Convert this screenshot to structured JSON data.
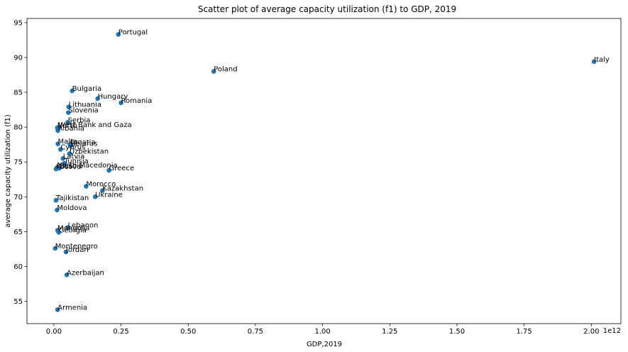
{
  "chart_data": {
    "type": "scatter",
    "title": "Scatter plot of average capacity utilization (f1) to GDP, 2019",
    "xlabel": "GDP,2019",
    "ylabel": "average capacity utilization (f1)",
    "x_offset_text": "1e12",
    "xlim": [
      -0.1,
      2.11
    ],
    "ylim": [
      51.8,
      95.6
    ],
    "xticks": [
      0.0,
      0.25,
      0.5,
      0.75,
      1.0,
      1.25,
      1.5,
      1.75,
      2.0
    ],
    "xtick_labels": [
      "0.00",
      "0.25",
      "0.50",
      "0.75",
      "1.00",
      "1.25",
      "1.50",
      "1.75",
      "2.00"
    ],
    "yticks": [
      55,
      60,
      65,
      70,
      75,
      80,
      85,
      90,
      95
    ],
    "ytick_labels": [
      "55",
      "60",
      "65",
      "70",
      "75",
      "80",
      "85",
      "90",
      "95"
    ],
    "marker_color": "#1f77b4",
    "points": [
      {
        "label": "Portugal",
        "x": 0.24,
        "y": 93.3
      },
      {
        "label": "Italy",
        "x": 2.01,
        "y": 89.4
      },
      {
        "label": "Poland",
        "x": 0.595,
        "y": 88.0
      },
      {
        "label": "Bulgaria",
        "x": 0.068,
        "y": 85.2
      },
      {
        "label": "Hungary",
        "x": 0.163,
        "y": 84.1
      },
      {
        "label": "Romania",
        "x": 0.25,
        "y": 83.5
      },
      {
        "label": "Lithuania",
        "x": 0.055,
        "y": 82.9
      },
      {
        "label": "Slovenia",
        "x": 0.054,
        "y": 82.1
      },
      {
        "label": "Serbia",
        "x": 0.052,
        "y": 80.7
      },
      {
        "label": "West Bank and Gaza",
        "x": 0.017,
        "y": 80.0
      },
      {
        "label": "North",
        "x": 0.013,
        "y": 79.9
      },
      {
        "label": "Albania",
        "x": 0.015,
        "y": 79.5
      },
      {
        "label": "Malta",
        "x": 0.015,
        "y": 77.6
      },
      {
        "label": "Croatia",
        "x": 0.06,
        "y": 77.5
      },
      {
        "label": "Belarus",
        "x": 0.063,
        "y": 77.3
      },
      {
        "label": "Cyprus",
        "x": 0.025,
        "y": 76.8
      },
      {
        "label": "Uzbekistan",
        "x": 0.058,
        "y": 76.2
      },
      {
        "label": "Latvia",
        "x": 0.034,
        "y": 75.5
      },
      {
        "label": "Tunisia",
        "x": 0.039,
        "y": 74.8
      },
      {
        "label": "North Macedonia",
        "x": 0.012,
        "y": 74.2
      },
      {
        "label": "Bosnia",
        "x": 0.02,
        "y": 74.1
      },
      {
        "label": "Kosovo",
        "x": 0.008,
        "y": 74.0
      },
      {
        "label": "Greece",
        "x": 0.205,
        "y": 73.8
      },
      {
        "label": "Morocco",
        "x": 0.12,
        "y": 71.5
      },
      {
        "label": "Kazakhstan",
        "x": 0.181,
        "y": 70.9
      },
      {
        "label": "Ukraine",
        "x": 0.154,
        "y": 70.0
      },
      {
        "label": "Tajikistan",
        "x": 0.008,
        "y": 69.5
      },
      {
        "label": "Moldova",
        "x": 0.012,
        "y": 68.1
      },
      {
        "label": "Lebanon",
        "x": 0.052,
        "y": 65.6
      },
      {
        "label": "Mongolia",
        "x": 0.014,
        "y": 65.2
      },
      {
        "label": "Georgia",
        "x": 0.018,
        "y": 64.9
      },
      {
        "label": "Montenegro",
        "x": 0.005,
        "y": 62.6
      },
      {
        "label": "Jordan",
        "x": 0.045,
        "y": 62.1
      },
      {
        "label": "Azerbaijan",
        "x": 0.048,
        "y": 58.8
      },
      {
        "label": "Armenia",
        "x": 0.014,
        "y": 53.8
      }
    ]
  }
}
